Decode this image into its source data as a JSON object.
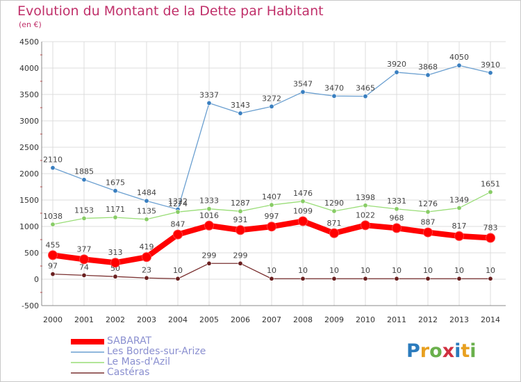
{
  "title": "Evolution du Montant de la Dette par Habitant",
  "subtitle": "(en €)",
  "logo": {
    "text": "Proxiti",
    "colors": [
      "#2b7bbd",
      "#e8a020",
      "#6ab04c",
      "#d03040",
      "#2b7bbd",
      "#e8a020",
      "#6ab04c"
    ]
  },
  "chart_data": {
    "type": "line",
    "x": [
      "2000",
      "2001",
      "2002",
      "2003",
      "2004",
      "2005",
      "2006",
      "2007",
      "2008",
      "2009",
      "2010",
      "2011",
      "2012",
      "2013",
      "2014"
    ],
    "ylim": [
      -500,
      4500
    ],
    "yticks": [
      "-500",
      "0",
      "500",
      "1000",
      "1500",
      "2000",
      "2500",
      "3000",
      "3500",
      "4000",
      "4500"
    ],
    "grid": true,
    "legend_position": "bottom-left",
    "series": [
      {
        "name": "Les Bordes-sur-Arize",
        "color": "#6a9fd0",
        "marker": "#3a7fc0",
        "values": [
          2110,
          1885,
          1675,
          1484,
          1322,
          3337,
          3143,
          3272,
          3547,
          3470,
          3465,
          3920,
          3868,
          4050,
          3910
        ]
      },
      {
        "name": "Le Mas-d'Azil",
        "color": "#99dd77",
        "marker": "#88cc66",
        "values": [
          1038,
          1153,
          1171,
          1135,
          1274,
          1333,
          1287,
          1407,
          1476,
          1290,
          1398,
          1331,
          1276,
          1349,
          1651
        ]
      },
      {
        "name": "Castéras",
        "color": "#7a3030",
        "marker": "#6a2020",
        "values": [
          97,
          74,
          50,
          23,
          10,
          299,
          299,
          10,
          10,
          10,
          10,
          10,
          10,
          10,
          10
        ]
      },
      {
        "name": "SABARAT",
        "color": "#ff0000",
        "marker": "#ff0000",
        "thick": true,
        "values": [
          455,
          377,
          313,
          419,
          847,
          1016,
          931,
          997,
          1099,
          871,
          1022,
          968,
          887,
          817,
          783
        ]
      }
    ],
    "legend_order": [
      "SABARAT",
      "Les Bordes-sur-Arize",
      "Le Mas-d'Azil",
      "Castéras"
    ]
  }
}
